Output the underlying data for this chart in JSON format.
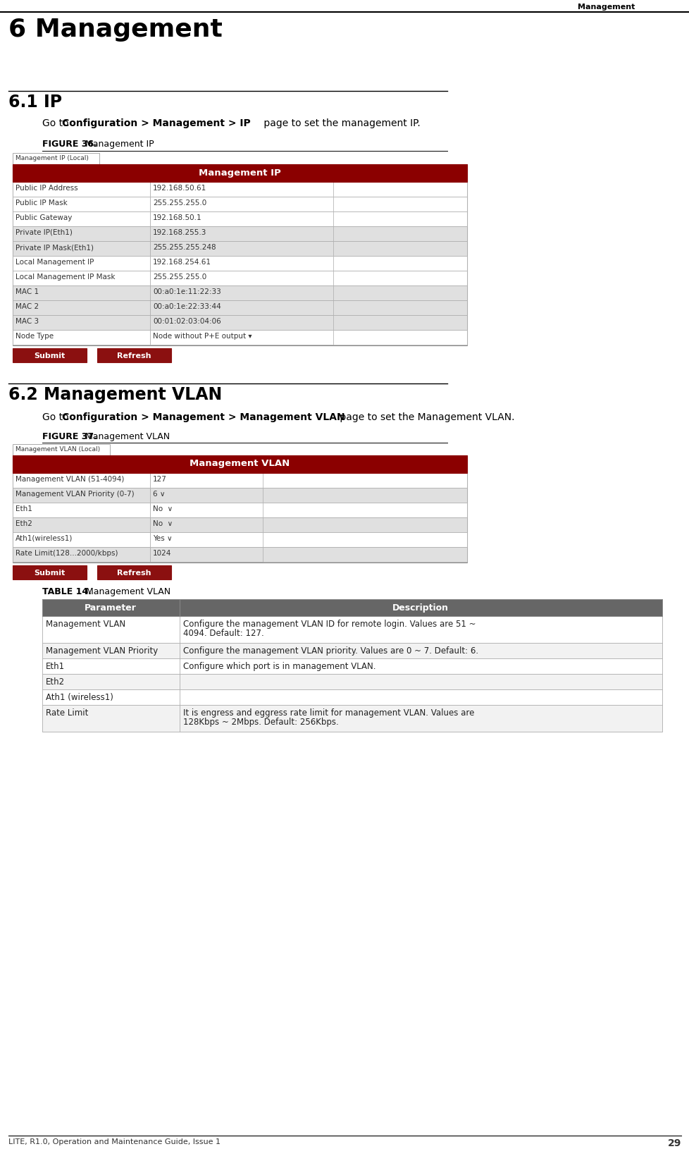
{
  "page_title": "Management",
  "chapter_title": "6 Management",
  "section1_title": "6.1 IP",
  "section1_body1": "Go to ",
  "section1_body2": "Configuration > Management > IP",
  "section1_body3": " page to set the management IP.",
  "figure36_label": "FIGURE 36.",
  "figure36_title": " Management IP",
  "ip_table_tab": "Management IP (Local)",
  "ip_table_header": "Management IP",
  "ip_rows": [
    [
      "Public IP Address",
      "192.168.50.61",
      "white"
    ],
    [
      "Public IP Mask",
      "255.255.255.0",
      "white"
    ],
    [
      "Public Gateway",
      "192.168.50.1",
      "white"
    ],
    [
      "Private IP(Eth1)",
      "192.168.255.3",
      "#e0e0e0"
    ],
    [
      "Private IP Mask(Eth1)",
      "255.255.255.248",
      "#e0e0e0"
    ],
    [
      "Local Management IP",
      "192.168.254.61",
      "white"
    ],
    [
      "Local Management IP Mask",
      "255.255.255.0",
      "white"
    ],
    [
      "MAC 1",
      "00:a0:1e:11:22:33",
      "#e0e0e0"
    ],
    [
      "MAC 2",
      "00:a0:1e:22:33:44",
      "#e0e0e0"
    ],
    [
      "MAC 3",
      "00:01:02:03:04:06",
      "#e0e0e0"
    ],
    [
      "Node Type",
      "Node without P+E output ▾",
      "white"
    ]
  ],
  "section2_title": "6.2 Management VLAN",
  "section2_body1": "Go to ",
  "section2_body2": "Configuration > Management > Management VLAN",
  "section2_body3": " page to set the Management VLAN.",
  "figure37_label": "FIGURE 37.",
  "figure37_title": " Management VLAN",
  "vlan_table_tab": "Management VLAN (Local)",
  "vlan_table_header": "Management VLAN",
  "vlan_rows": [
    [
      "Management VLAN (51-4094)",
      "127",
      "white"
    ],
    [
      "Management VLAN Priority (0-7)",
      "6 ∨",
      "#e0e0e0"
    ],
    [
      "Eth1",
      "No  ∨",
      "white"
    ],
    [
      "Eth2",
      "No  ∨",
      "#e0e0e0"
    ],
    [
      "Ath1(wireless1)",
      "Yes ∨",
      "white"
    ],
    [
      "Rate Limit(128...2000/kbps)",
      "1024",
      "#e0e0e0"
    ]
  ],
  "table14_label": "TABLE 14.",
  "table14_title": " Management VLAN",
  "table14_header": [
    "Parameter",
    "Description"
  ],
  "table14_rows": [
    [
      "Management VLAN",
      "Configure the management VLAN ID for remote login. Values are 51 ~\n4094. Default: 127."
    ],
    [
      "Management VLAN Priority",
      "Configure the management VLAN priority. Values are 0 ~ 7. Default: 6."
    ],
    [
      "Eth1",
      "Configure which port is in management VLAN."
    ],
    [
      "Eth2",
      ""
    ],
    [
      "Ath1 (wireless1)",
      ""
    ],
    [
      "Rate Limit",
      "It is engress and eggress rate limit for management VLAN. Values are\n128Kbps ~ 2Mbps. Default: 256Kbps."
    ]
  ],
  "footer_text": "LITE, R1.0, Operation and Maintenance Guide, Issue 1",
  "footer_page": "29",
  "dark_red": "#8B0000",
  "button_red": "#8B1010"
}
